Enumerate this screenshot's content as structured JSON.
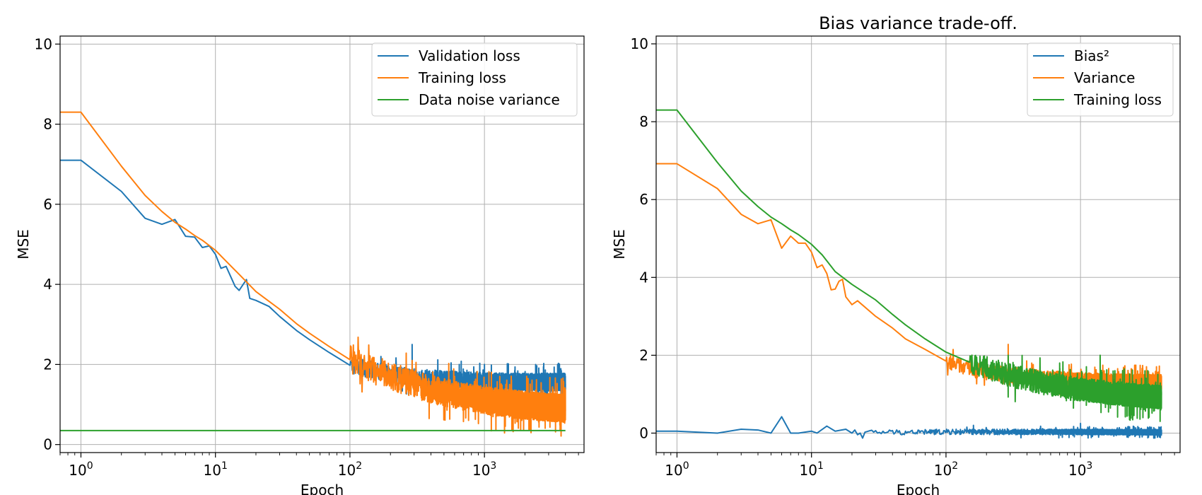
{
  "chart_data": [
    {
      "type": "line",
      "title": "",
      "xlabel": "Epoch",
      "ylabel": "MSE",
      "xscale": "log",
      "xlim": [
        0.7,
        5500
      ],
      "ylim": [
        -0.2,
        10.2
      ],
      "grid": true,
      "legend": "top-right",
      "x_ticks": [
        {
          "value": 1,
          "base": "10",
          "exp": "0"
        },
        {
          "value": 10,
          "base": "10",
          "exp": "1"
        },
        {
          "value": 100,
          "base": "10",
          "exp": "2"
        },
        {
          "value": 1000,
          "base": "10",
          "exp": "3"
        }
      ],
      "y_ticks": [
        0,
        2,
        4,
        6,
        8,
        10
      ],
      "x_max": 4000,
      "series": [
        {
          "name": "Validation loss",
          "color": "#1f77b4",
          "points": [
            [
              0.7,
              7.1
            ],
            [
              1,
              7.1
            ],
            [
              2,
              6.32
            ],
            [
              3,
              5.65
            ],
            [
              4,
              5.5
            ],
            [
              5,
              5.62
            ],
            [
              6,
              5.2
            ],
            [
              7,
              5.18
            ],
            [
              8,
              4.92
            ],
            [
              9,
              4.96
            ],
            [
              10,
              4.75
            ],
            [
              11,
              4.4
            ],
            [
              12,
              4.45
            ],
            [
              14,
              3.95
            ],
            [
              15,
              3.85
            ],
            [
              17,
              4.12
            ],
            [
              18,
              3.65
            ],
            [
              20,
              3.6
            ],
            [
              25,
              3.45
            ],
            [
              30,
              3.2
            ],
            [
              40,
              2.85
            ],
            [
              50,
              2.62
            ],
            [
              70,
              2.3
            ],
            [
              100,
              1.98
            ],
            [
              150,
              1.85
            ],
            [
              200,
              1.75
            ],
            [
              300,
              1.68
            ],
            [
              500,
              1.62
            ],
            [
              1000,
              1.58
            ],
            [
              2000,
              1.56
            ],
            [
              4000,
              1.56
            ]
          ],
          "noise": {
            "start": 100,
            "amplitude": 0.22,
            "spikes": [
              [
                290,
                2.5
              ],
              [
                170,
                2.2
              ],
              [
                1000,
                2.0
              ],
              [
                3500,
                2.0
              ],
              [
                1500,
                1.95
              ]
            ]
          }
        },
        {
          "name": "Training loss",
          "color": "#ff7f0e",
          "points": [
            [
              0.7,
              8.3
            ],
            [
              1,
              8.3
            ],
            [
              2,
              6.95
            ],
            [
              3,
              6.22
            ],
            [
              4,
              5.82
            ],
            [
              5,
              5.55
            ],
            [
              6,
              5.38
            ],
            [
              7,
              5.22
            ],
            [
              8,
              5.1
            ],
            [
              10,
              4.85
            ],
            [
              12,
              4.58
            ],
            [
              15,
              4.25
            ],
            [
              20,
              3.82
            ],
            [
              30,
              3.38
            ],
            [
              40,
              3.02
            ],
            [
              50,
              2.78
            ],
            [
              70,
              2.45
            ],
            [
              100,
              2.12
            ],
            [
              150,
              1.88
            ],
            [
              200,
              1.72
            ],
            [
              300,
              1.5
            ],
            [
              500,
              1.3
            ],
            [
              1000,
              1.1
            ],
            [
              2000,
              0.98
            ],
            [
              4000,
              0.9
            ]
          ],
          "noise": {
            "start": 100,
            "amplitude": 0.35,
            "spikes": [
              [
                290,
                2.1
              ],
              [
                600,
                1.7
              ],
              [
                1300,
                1.7
              ]
            ]
          }
        },
        {
          "name": "Data noise variance",
          "color": "#2ca02c",
          "points": [
            [
              0.7,
              0.35
            ],
            [
              4000,
              0.35
            ]
          ]
        }
      ]
    },
    {
      "type": "line",
      "title": "Bias variance trade-off.",
      "xlabel": "Epoch",
      "ylabel": "MSE",
      "xscale": "log",
      "xlim": [
        0.7,
        5500
      ],
      "ylim": [
        -0.5,
        10.2
      ],
      "grid": true,
      "legend": "top-right",
      "x_ticks": [
        {
          "value": 1,
          "base": "10",
          "exp": "0"
        },
        {
          "value": 10,
          "base": "10",
          "exp": "1"
        },
        {
          "value": 100,
          "base": "10",
          "exp": "2"
        },
        {
          "value": 1000,
          "base": "10",
          "exp": "3"
        }
      ],
      "y_ticks": [
        0,
        2,
        4,
        6,
        8,
        10
      ],
      "x_max": 4000,
      "series": [
        {
          "name": "Bias²",
          "color": "#1f77b4",
          "points": [
            [
              0.7,
              0.05
            ],
            [
              1,
              0.05
            ],
            [
              2,
              0.0
            ],
            [
              3,
              0.1
            ],
            [
              4,
              0.08
            ],
            [
              5,
              0.0
            ],
            [
              6,
              0.42
            ],
            [
              7,
              0.0
            ],
            [
              8,
              0.0
            ],
            [
              10,
              0.05
            ],
            [
              11,
              0.0
            ],
            [
              13,
              0.18
            ],
            [
              15,
              0.05
            ],
            [
              18,
              0.1
            ],
            [
              20,
              0.0
            ],
            [
              30,
              0.02
            ],
            [
              100,
              0.03
            ],
            [
              1000,
              0.03
            ],
            [
              4000,
              0.02
            ]
          ],
          "noise": {
            "start": 20,
            "amplitude": 0.07,
            "spikes": [
              [
                160,
                0.2
              ],
              [
                1000,
                0.25
              ],
              [
                500,
                0.12
              ]
            ]
          }
        },
        {
          "name": "Variance",
          "color": "#ff7f0e",
          "points": [
            [
              0.7,
              6.92
            ],
            [
              1,
              6.92
            ],
            [
              2,
              6.28
            ],
            [
              3,
              5.62
            ],
            [
              4,
              5.38
            ],
            [
              5,
              5.48
            ],
            [
              6,
              4.75
            ],
            [
              7,
              5.06
            ],
            [
              8,
              4.88
            ],
            [
              9,
              4.88
            ],
            [
              10,
              4.65
            ],
            [
              11,
              4.25
            ],
            [
              12,
              4.32
            ],
            [
              13,
              4.1
            ],
            [
              14,
              3.68
            ],
            [
              15,
              3.7
            ],
            [
              16,
              3.9
            ],
            [
              17,
              3.95
            ],
            [
              18,
              3.5
            ],
            [
              20,
              3.3
            ],
            [
              22,
              3.4
            ],
            [
              30,
              3.0
            ],
            [
              40,
              2.7
            ],
            [
              50,
              2.42
            ],
            [
              70,
              2.15
            ],
            [
              100,
              1.85
            ],
            [
              150,
              1.65
            ],
            [
              200,
              1.56
            ],
            [
              300,
              1.5
            ],
            [
              500,
              1.42
            ],
            [
              1000,
              1.35
            ],
            [
              2000,
              1.32
            ],
            [
              4000,
              1.3
            ]
          ],
          "noise": {
            "start": 100,
            "amplitude": 0.2,
            "spikes": [
              [
                290,
                2.28
              ],
              [
                1500,
                1.6
              ]
            ]
          }
        },
        {
          "name": "Training loss",
          "color": "#2ca02c",
          "points": [
            [
              0.7,
              8.3
            ],
            [
              1,
              8.3
            ],
            [
              2,
              6.95
            ],
            [
              3,
              6.22
            ],
            [
              4,
              5.82
            ],
            [
              5,
              5.55
            ],
            [
              6,
              5.38
            ],
            [
              7,
              5.22
            ],
            [
              8,
              5.1
            ],
            [
              10,
              4.85
            ],
            [
              12,
              4.58
            ],
            [
              15,
              4.15
            ],
            [
              20,
              3.82
            ],
            [
              30,
              3.42
            ],
            [
              40,
              3.05
            ],
            [
              50,
              2.78
            ],
            [
              70,
              2.42
            ],
            [
              100,
              2.08
            ],
            [
              150,
              1.82
            ],
            [
              200,
              1.68
            ],
            [
              300,
              1.48
            ],
            [
              500,
              1.3
            ],
            [
              1000,
              1.12
            ],
            [
              2000,
              1.0
            ],
            [
              4000,
              0.92
            ]
          ],
          "noise": {
            "start": 150,
            "amplitude": 0.3,
            "spikes": [
              [
                290,
                2.0
              ],
              [
                1400,
                2.0
              ],
              [
                700,
                1.8
              ]
            ]
          }
        }
      ]
    }
  ]
}
